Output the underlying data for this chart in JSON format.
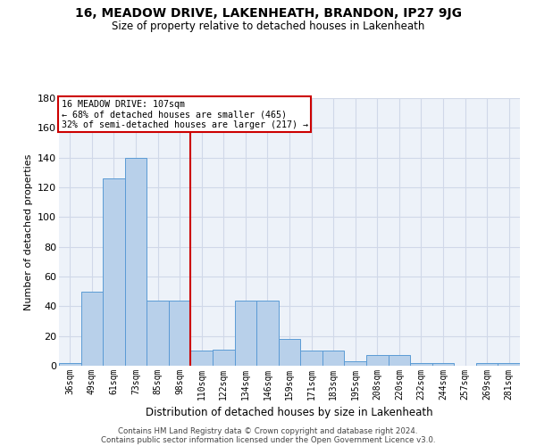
{
  "title": "16, MEADOW DRIVE, LAKENHEATH, BRANDON, IP27 9JG",
  "subtitle": "Size of property relative to detached houses in Lakenheath",
  "xlabel": "Distribution of detached houses by size in Lakenheath",
  "ylabel": "Number of detached properties",
  "categories": [
    "36sqm",
    "49sqm",
    "61sqm",
    "73sqm",
    "85sqm",
    "98sqm",
    "110sqm",
    "122sqm",
    "134sqm",
    "146sqm",
    "159sqm",
    "171sqm",
    "183sqm",
    "195sqm",
    "208sqm",
    "220sqm",
    "232sqm",
    "244sqm",
    "257sqm",
    "269sqm",
    "281sqm"
  ],
  "values": [
    2,
    50,
    126,
    140,
    44,
    44,
    10,
    11,
    44,
    44,
    18,
    10,
    10,
    3,
    7,
    7,
    2,
    2,
    0,
    2,
    2
  ],
  "bar_color": "#b8d0ea",
  "bar_edge_color": "#5b9bd5",
  "vline_color": "#cc0000",
  "vline_index": 6,
  "annotation_text": "16 MEADOW DRIVE: 107sqm\n← 68% of detached houses are smaller (465)\n32% of semi-detached houses are larger (217) →",
  "annotation_box_color": "#ffffff",
  "annotation_box_edge": "#cc0000",
  "ylim": [
    0,
    180
  ],
  "yticks": [
    0,
    20,
    40,
    60,
    80,
    100,
    120,
    140,
    160,
    180
  ],
  "grid_color": "#d0d8e8",
  "bg_color": "#edf2f9",
  "footer1": "Contains HM Land Registry data © Crown copyright and database right 2024.",
  "footer2": "Contains public sector information licensed under the Open Government Licence v3.0."
}
